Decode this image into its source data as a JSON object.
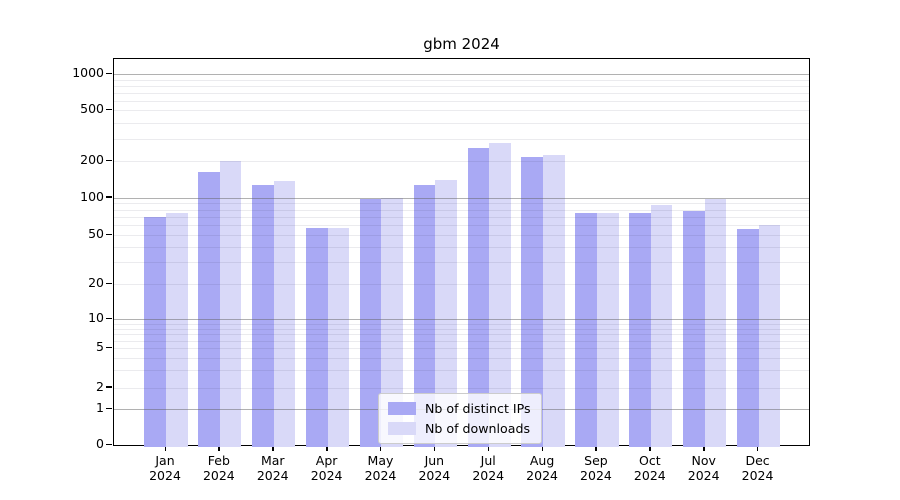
{
  "chart_data": {
    "type": "bar",
    "title": "gbm 2024",
    "xlabel": "",
    "ylabel": "",
    "yscale": "symlog",
    "grid": true,
    "legend_position": "lower center",
    "yticks": [
      0,
      1,
      2,
      5,
      10,
      20,
      50,
      100,
      200,
      500,
      1000
    ],
    "ylim": [
      0,
      1400
    ],
    "categories": [
      "Jan 2024",
      "Feb 2024",
      "Mar 2024",
      "Apr 2024",
      "May 2024",
      "Jun 2024",
      "Jul 2024",
      "Aug 2024",
      "Sep 2024",
      "Oct 2024",
      "Nov 2024",
      "Dec 2024"
    ],
    "series": [
      {
        "name": "Nb of distinct IPs",
        "color": "#a9a9f4",
        "values": [
          70,
          163,
          127,
          57,
          98,
          128,
          251,
          215,
          75,
          76,
          78,
          56
        ]
      },
      {
        "name": "Nb of downloads",
        "color": "#d9d9f8",
        "values": [
          76,
          199,
          136,
          57,
          100,
          140,
          276,
          221,
          75,
          88,
          97,
          61
        ]
      }
    ]
  }
}
